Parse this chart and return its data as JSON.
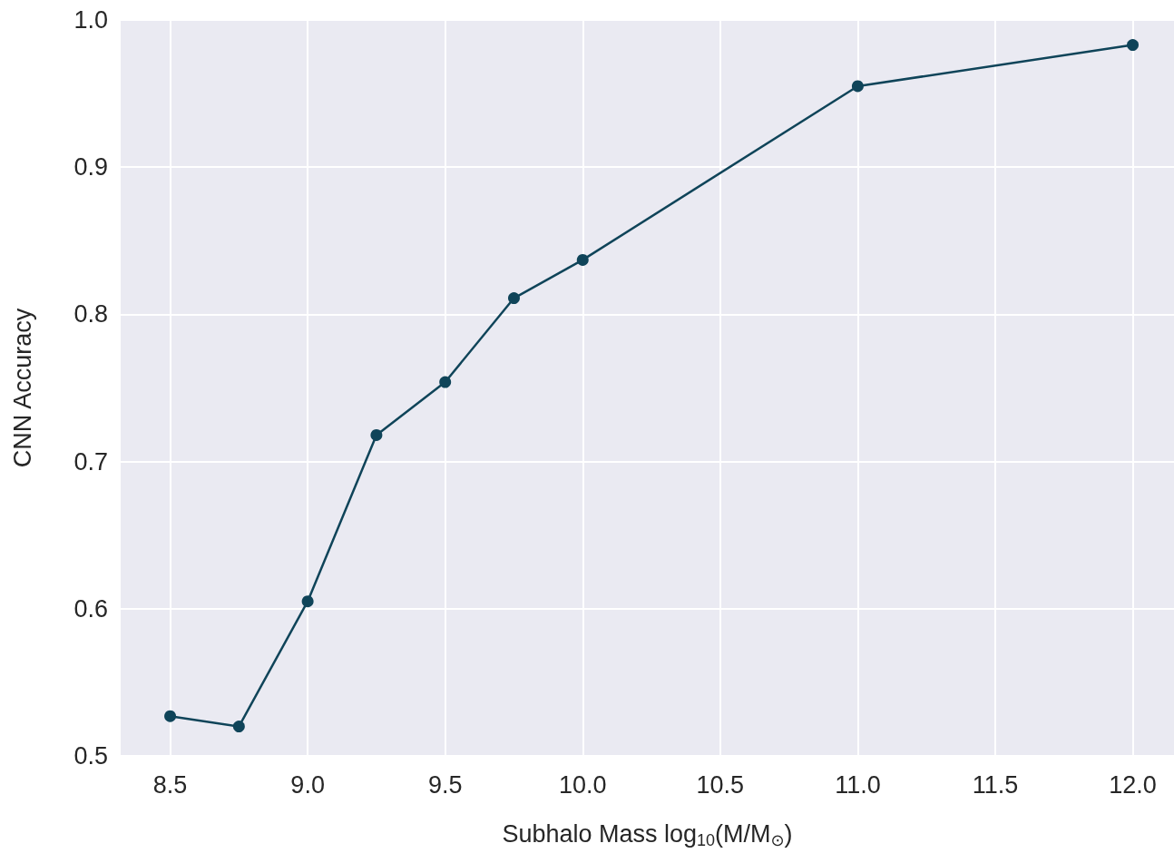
{
  "chart_data": {
    "type": "line",
    "xlabel": "Subhalo Mass log$_{10}$(M/M$_{⊙}$)",
    "ylabel": "CNN Accuracy",
    "x": [
      8.5,
      8.75,
      9.0,
      9.25,
      9.5,
      9.75,
      10.0,
      11.0,
      12.0
    ],
    "series": [
      {
        "color": "#0f4459",
        "values": [
          0.527,
          0.52,
          0.605,
          0.718,
          0.754,
          0.811,
          0.837,
          0.955,
          0.983
        ]
      }
    ],
    "xlim": [
      8.32,
      12.15
    ],
    "xticks": [
      8.5,
      {
        "value": 9,
        "label": "9.0"
      },
      9.5,
      {
        "value": 10,
        "label": "10.0"
      },
      10.5,
      {
        "value": 11,
        "label": "11.0"
      },
      11.5,
      {
        "value": 12,
        "label": "12.0"
      }
    ],
    "ylim": [
      0.5,
      1.0
    ],
    "yticks": [
      0.5,
      0.6,
      0.7,
      0.8,
      0.9,
      {
        "value": 1,
        "label": "1.0"
      }
    ],
    "grid": true,
    "marker": "circle",
    "line_style": "solid"
  }
}
